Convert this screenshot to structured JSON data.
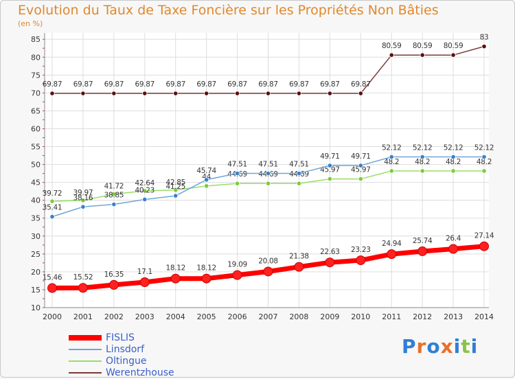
{
  "chart_data": {
    "type": "line",
    "title": "Evolution du Taux de Taxe Foncière sur les Propriétés Non Bâties",
    "ylabel": "(en %)",
    "xlabel": "",
    "categories": [
      "2000",
      "2001",
      "2002",
      "2003",
      "2004",
      "2005",
      "2006",
      "2007",
      "2008",
      "2009",
      "2010",
      "2011",
      "2012",
      "2013",
      "2014"
    ],
    "yticks": [
      "10",
      "15",
      "20",
      "25",
      "30",
      "35",
      "40",
      "45",
      "50",
      "55",
      "60",
      "65",
      "70",
      "75",
      "80",
      "85"
    ],
    "ylim": [
      10,
      86
    ],
    "series": [
      {
        "name": "FISLIS",
        "color": "#ff0000",
        "values": [
          15.46,
          15.52,
          16.35,
          17.1,
          18.12,
          18.12,
          19.09,
          20.08,
          21.38,
          22.63,
          23.23,
          24.94,
          25.74,
          26.4,
          27.14
        ],
        "labels": [
          "15.46",
          "15.52",
          "16.35",
          "17.1",
          "18.12",
          "18.12",
          "19.09",
          "20.08",
          "21.38",
          "22.63",
          "23.23",
          "24.94",
          "25.74",
          "26.4",
          "27.14"
        ]
      },
      {
        "name": "Linsdorf",
        "color": "#6fa6d6",
        "values": [
          35.41,
          38.16,
          38.85,
          40.23,
          41.25,
          45.74,
          47.51,
          47.51,
          47.51,
          49.71,
          49.71,
          52.12,
          52.12,
          52.12,
          52.12
        ],
        "labels": [
          "35.41",
          "38.16",
          "38.85",
          "40.23",
          "41.25",
          "45.74",
          "47.51",
          "47.51",
          "47.51",
          "49.71",
          "49.71",
          "52.12",
          "52.12",
          "52.12",
          "52.12"
        ]
      },
      {
        "name": "Oltingue",
        "color": "#99dd66",
        "values": [
          39.72,
          39.97,
          41.72,
          42.64,
          42.85,
          44,
          44.69,
          44.69,
          44.69,
          45.97,
          45.97,
          48.2,
          48.2,
          48.2,
          48.2
        ],
        "labels": [
          "39.72",
          "39.97",
          "41.72",
          "42.64",
          "42.85",
          "44",
          "44.69",
          "44.69",
          "44.69",
          "45.97",
          "45.97",
          "48.2",
          "48.2",
          "48.2",
          "48.2"
        ]
      },
      {
        "name": "Werentzhouse",
        "color": "#7a3a3a",
        "values": [
          69.87,
          69.87,
          69.87,
          69.87,
          69.87,
          69.87,
          69.87,
          69.87,
          69.87,
          69.87,
          69.87,
          80.59,
          80.59,
          80.59,
          83
        ],
        "labels": [
          "69.87",
          "69.87",
          "69.87",
          "69.87",
          "69.87",
          "69.87",
          "69.87",
          "69.87",
          "69.87",
          "69.87",
          "69.87",
          "80.59",
          "80.59",
          "80.59",
          "83"
        ]
      }
    ],
    "legend": [
      "FISLIS",
      "Linsdorf",
      "Oltingue",
      "Werentzhouse"
    ],
    "legend_position": "bottom-left",
    "grid": true
  },
  "logo": {
    "letters": [
      "P",
      "r",
      "o",
      "x",
      "i",
      "t",
      "i"
    ],
    "colors": [
      "#2f7fd6",
      "#e8702a",
      "#2f7fd6",
      "#e8702a",
      "#2f7fd6",
      "#8bc34a",
      "#2f7fd6"
    ]
  }
}
